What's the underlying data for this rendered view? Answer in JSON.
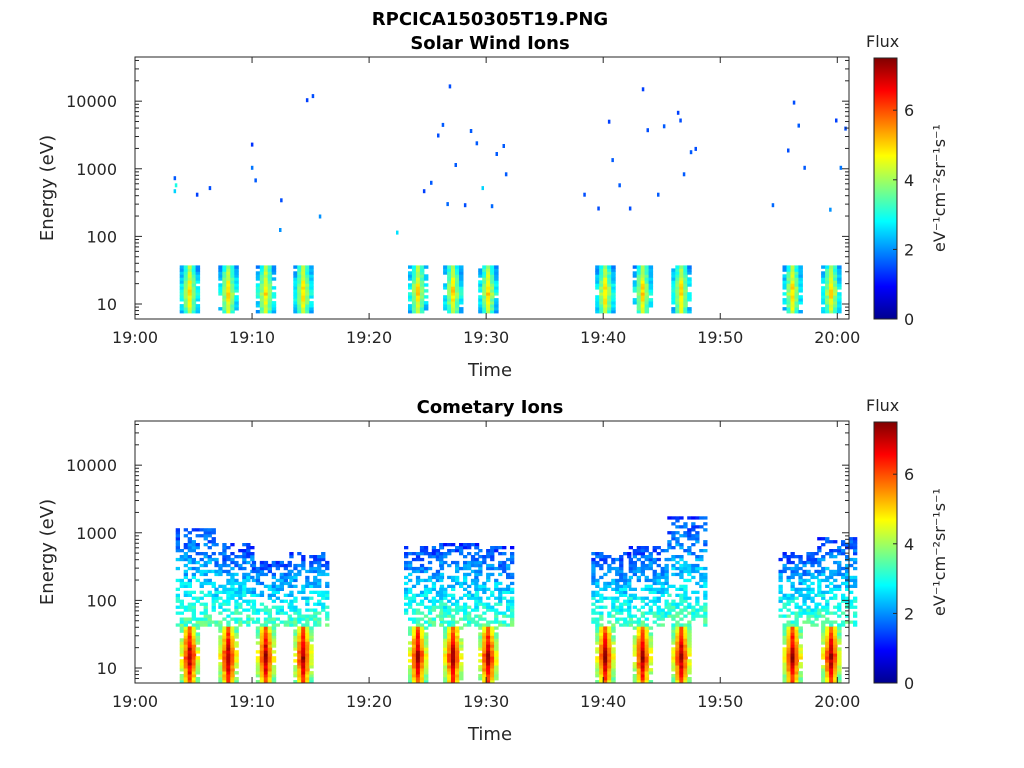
{
  "figure_title": "RPCICA150305T19.PNG",
  "colors": {
    "colormap": "jet",
    "axes": "#262626",
    "background": "#ffffff"
  },
  "chart_data": [
    {
      "type": "heatmap",
      "title": "Solar Wind Ions",
      "xlabel": "Time",
      "ylabel": "Energy (eV)",
      "x_ticks": [
        "19:00",
        "19:10",
        "19:20",
        "19:30",
        "19:40",
        "19:50",
        "20:00"
      ],
      "xlim_minutes": [
        0,
        61
      ],
      "y_ticks": [
        "10",
        "100",
        "1000",
        "10000"
      ],
      "y_scale": "log",
      "ylim": [
        6,
        45000
      ],
      "colorbar": {
        "title": "Flux",
        "units": "eV⁻¹cm⁻²sr⁻¹s⁻¹",
        "ticks": [
          "0",
          "2",
          "4",
          "6"
        ],
        "range": [
          0,
          7.5
        ]
      },
      "bursts_minutes": [
        4.5,
        7.8,
        11,
        14.2,
        24,
        27,
        30,
        40,
        43.2,
        46.5,
        56,
        59.3
      ],
      "low_energy_band_eV": [
        7,
        35
      ],
      "low_energy_flux_range": [
        2,
        5
      ],
      "scattered_points": [
        {
          "t": 3.3,
          "e": 700,
          "v": 1.6
        },
        {
          "t": 3.3,
          "e": 450,
          "v": 2.5
        },
        {
          "t": 3.4,
          "e": 550,
          "v": 3.0
        },
        {
          "t": 5.2,
          "e": 400,
          "v": 1.4
        },
        {
          "t": 6.3,
          "e": 500,
          "v": 1.5
        },
        {
          "t": 9.9,
          "e": 2200,
          "v": 1.3
        },
        {
          "t": 9.9,
          "e": 1000,
          "v": 1.8
        },
        {
          "t": 10.2,
          "e": 650,
          "v": 1.6
        },
        {
          "t": 12.3,
          "e": 120,
          "v": 2.0
        },
        {
          "t": 12.4,
          "e": 330,
          "v": 1.5
        },
        {
          "t": 14.6,
          "e": 10000,
          "v": 1.4
        },
        {
          "t": 15.1,
          "e": 11500,
          "v": 1.5
        },
        {
          "t": 15.7,
          "e": 190,
          "v": 2.0
        },
        {
          "t": 22.3,
          "e": 110,
          "v": 2.6
        },
        {
          "t": 24.6,
          "e": 450,
          "v": 1.4
        },
        {
          "t": 25.2,
          "e": 600,
          "v": 1.6
        },
        {
          "t": 25.8,
          "e": 3000,
          "v": 1.5
        },
        {
          "t": 26.2,
          "e": 4300,
          "v": 1.6
        },
        {
          "t": 26.6,
          "e": 290,
          "v": 1.7
        },
        {
          "t": 26.8,
          "e": 16000,
          "v": 1.5
        },
        {
          "t": 27.3,
          "e": 1100,
          "v": 1.6
        },
        {
          "t": 28.1,
          "e": 280,
          "v": 1.5
        },
        {
          "t": 28.6,
          "e": 3500,
          "v": 1.6
        },
        {
          "t": 29.1,
          "e": 2300,
          "v": 1.6
        },
        {
          "t": 29.6,
          "e": 500,
          "v": 2.5
        },
        {
          "t": 30.4,
          "e": 270,
          "v": 1.7
        },
        {
          "t": 30.8,
          "e": 1600,
          "v": 1.6
        },
        {
          "t": 31.4,
          "e": 2100,
          "v": 1.6
        },
        {
          "t": 31.6,
          "e": 800,
          "v": 1.6
        },
        {
          "t": 38.3,
          "e": 400,
          "v": 1.5
        },
        {
          "t": 39.5,
          "e": 250,
          "v": 1.5
        },
        {
          "t": 40.4,
          "e": 4800,
          "v": 1.4
        },
        {
          "t": 40.7,
          "e": 1300,
          "v": 1.6
        },
        {
          "t": 41.3,
          "e": 550,
          "v": 1.6
        },
        {
          "t": 42.2,
          "e": 250,
          "v": 1.5
        },
        {
          "t": 43.3,
          "e": 14500,
          "v": 1.4
        },
        {
          "t": 43.7,
          "e": 3600,
          "v": 1.5
        },
        {
          "t": 44.6,
          "e": 400,
          "v": 1.6
        },
        {
          "t": 45.1,
          "e": 4100,
          "v": 1.6
        },
        {
          "t": 46.3,
          "e": 6500,
          "v": 1.4
        },
        {
          "t": 46.5,
          "e": 5000,
          "v": 1.5
        },
        {
          "t": 46.8,
          "e": 800,
          "v": 1.6
        },
        {
          "t": 47.4,
          "e": 1700,
          "v": 1.6
        },
        {
          "t": 47.8,
          "e": 1900,
          "v": 1.5
        },
        {
          "t": 54.4,
          "e": 280,
          "v": 1.7
        },
        {
          "t": 55.7,
          "e": 1800,
          "v": 1.5
        },
        {
          "t": 56.2,
          "e": 9200,
          "v": 1.5
        },
        {
          "t": 56.6,
          "e": 4200,
          "v": 1.6
        },
        {
          "t": 57.1,
          "e": 1000,
          "v": 1.6
        },
        {
          "t": 59.3,
          "e": 240,
          "v": 2.0
        },
        {
          "t": 59.8,
          "e": 5000,
          "v": 1.4
        },
        {
          "t": 60.2,
          "e": 1000,
          "v": 1.8
        },
        {
          "t": 60.6,
          "e": 3800,
          "v": 1.5
        }
      ]
    },
    {
      "type": "heatmap",
      "title": "Cometary Ions",
      "xlabel": "Time",
      "ylabel": "Energy (eV)",
      "x_ticks": [
        "19:00",
        "19:10",
        "19:20",
        "19:30",
        "19:40",
        "19:50",
        "20:00"
      ],
      "xlim_minutes": [
        0,
        61
      ],
      "y_ticks": [
        "10",
        "100",
        "1000",
        "10000"
      ],
      "y_scale": "log",
      "ylim": [
        6,
        45000
      ],
      "colorbar": {
        "title": "Flux",
        "units": "eV⁻¹cm⁻²sr⁻¹s⁻¹",
        "ticks": [
          "0",
          "2",
          "4",
          "6"
        ],
        "range": [
          0,
          7.5
        ]
      },
      "bursts_minutes": [
        4.5,
        7.8,
        11,
        14.2,
        24,
        27,
        30,
        40,
        43.2,
        46.5,
        56,
        59.3
      ],
      "low_energy_band_eV": [
        6,
        40
      ],
      "low_energy_flux_range": [
        3.5,
        7.3
      ],
      "plume_top_eV": [
        1100,
        650,
        350,
        500,
        600,
        650,
        580,
        500,
        600,
        1600,
        500,
        800
      ],
      "scattered_points": []
    }
  ]
}
